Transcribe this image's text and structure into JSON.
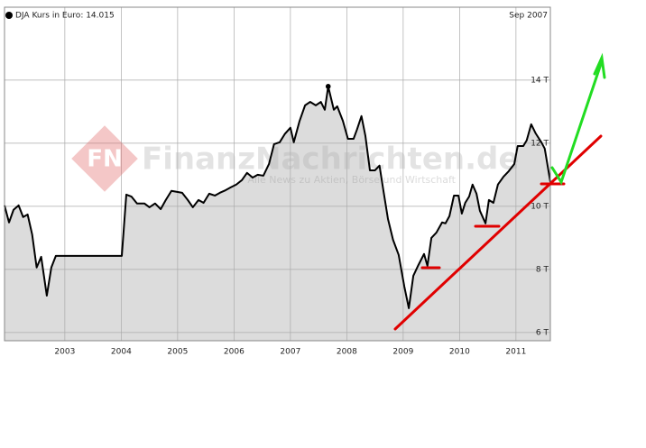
{
  "chart_data": {
    "type": "line",
    "title": "DJA Kurs in Euro: 14.015",
    "date_label": "Sep 2007",
    "watermark_logo": "FN",
    "watermark": "FinanzNachrichten.de",
    "watermark_sub": "Alle News zu Aktien, Börse und Wirtschaft",
    "color": "#000000",
    "area_color": "#dcdcdc",
    "grid": true,
    "highlight_index": 51,
    "x": [
      2001.93,
      2002.01,
      2002.09,
      2002.18,
      2002.26,
      2002.34,
      2002.42,
      2002.5,
      2002.58,
      2002.68,
      2002.76,
      2002.84,
      2004.01,
      2004.09,
      2004.18,
      2004.28,
      2004.41,
      2004.5,
      2004.6,
      2004.7,
      2004.79,
      2004.89,
      2004.98,
      2005.08,
      2005.18,
      2005.27,
      2005.37,
      2005.46,
      2005.56,
      2005.66,
      2005.75,
      2005.85,
      2005.94,
      2006.04,
      2006.14,
      2006.23,
      2006.33,
      2006.42,
      2006.52,
      2006.62,
      2006.71,
      2006.81,
      2006.9,
      2007.0,
      2007.06,
      2007.16,
      2007.26,
      2007.35,
      2007.45,
      2007.54,
      2007.61,
      2007.67,
      2007.77,
      2007.83,
      2007.93,
      2008.02,
      2008.12,
      2008.18,
      2008.26,
      2008.33,
      2008.41,
      2008.5,
      2008.58,
      2008.65,
      2008.73,
      2008.82,
      2008.92,
      2009.02,
      2009.1,
      2009.18,
      2009.27,
      2009.37,
      2009.43,
      2009.5,
      2009.59,
      2009.69,
      2009.75,
      2009.82,
      2009.9,
      2009.98,
      2010.04,
      2010.1,
      2010.17,
      2010.23,
      2010.3,
      2010.36,
      2010.46,
      2010.52,
      2010.6,
      2010.68,
      2010.78,
      2010.87,
      2010.97,
      2011.03,
      2011.13,
      2011.19,
      2011.27,
      2011.35,
      2011.45,
      2011.51,
      2011.61
    ],
    "values": [
      10.03,
      9.49,
      9.89,
      10.03,
      9.66,
      9.74,
      9.11,
      8.06,
      8.4,
      7.17,
      8.06,
      8.43,
      8.43,
      10.37,
      10.31,
      10.09,
      10.09,
      9.97,
      10.09,
      9.91,
      10.2,
      10.49,
      10.46,
      10.43,
      10.2,
      9.97,
      10.2,
      10.11,
      10.4,
      10.34,
      10.43,
      10.51,
      10.6,
      10.69,
      10.83,
      11.06,
      10.91,
      11.0,
      10.97,
      11.34,
      11.97,
      12.03,
      12.29,
      12.49,
      12.03,
      12.69,
      13.2,
      13.31,
      13.2,
      13.31,
      13.06,
      13.8,
      13.06,
      13.17,
      12.71,
      12.14,
      12.14,
      12.43,
      12.86,
      12.23,
      11.14,
      11.14,
      11.29,
      10.49,
      9.6,
      8.94,
      8.46,
      7.46,
      6.77,
      7.8,
      8.14,
      8.49,
      8.11,
      9.0,
      9.17,
      9.49,
      9.46,
      9.69,
      10.34,
      10.34,
      9.77,
      10.11,
      10.31,
      10.69,
      10.4,
      9.86,
      9.46,
      10.2,
      10.11,
      10.69,
      10.94,
      11.11,
      11.34,
      11.91,
      11.91,
      12.09,
      12.6,
      12.31,
      12.03,
      11.83,
      10.77
    ],
    "xlim": [
      2001.93,
      2011.61
    ],
    "xticks": [
      2003,
      2004,
      2005,
      2006,
      2007,
      2008,
      2009,
      2010,
      2011
    ],
    "ylim": [
      5.74,
      16.31
    ],
    "yticks": [
      {
        "value": 6,
        "label": "6 T"
      },
      {
        "value": 8,
        "label": "8 T"
      },
      {
        "value": 10,
        "label": "10 T"
      },
      {
        "value": 12,
        "label": "12 T"
      },
      {
        "value": 14,
        "label": "14 T"
      }
    ]
  }
}
